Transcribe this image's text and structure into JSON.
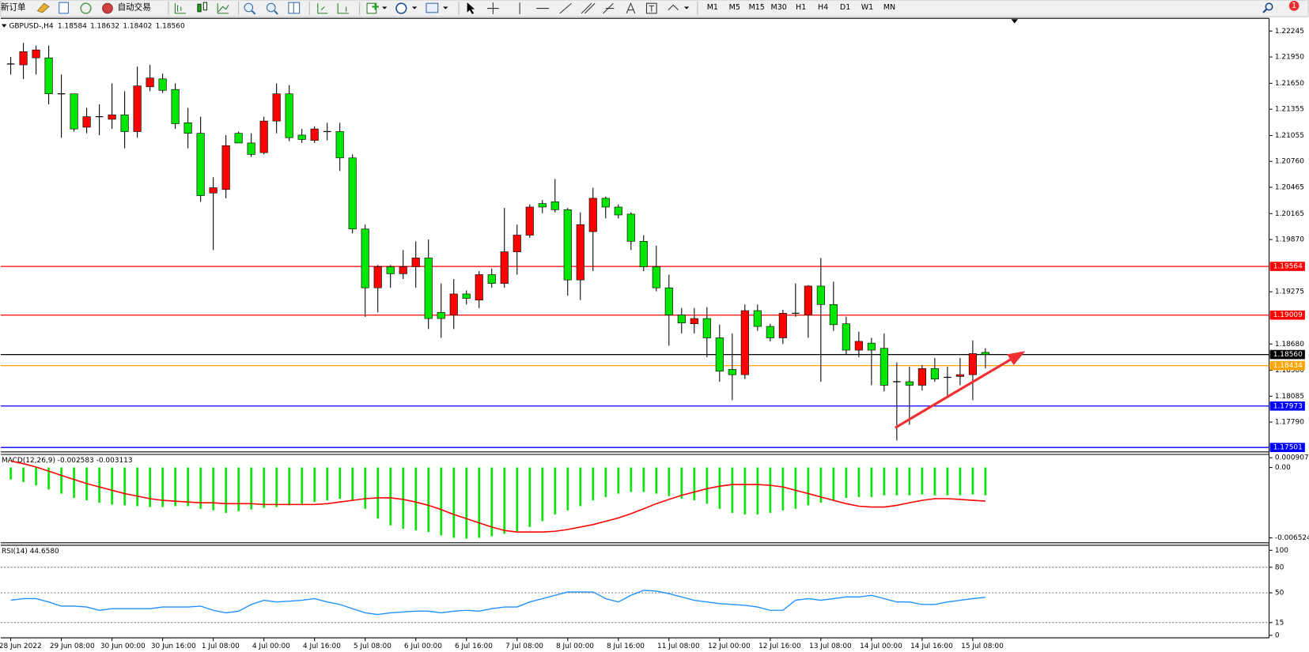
{
  "toolbar": {
    "new_order": "新订单",
    "auto_trading": "自动交易",
    "timeframes": [
      "M1",
      "M5",
      "M15",
      "M30",
      "H1",
      "H4",
      "D1",
      "W1",
      "MN"
    ],
    "notification": "1"
  },
  "chart_data": [
    {
      "type": "candlestick",
      "title": "GBPUSD-,H4",
      "ohlc_text": [
        "1.18584",
        "1.18632",
        "1.18402",
        "1.18560"
      ],
      "up_color": "#ff0000",
      "down_color": "#00e600",
      "ylim": [
        1.1746,
        1.2239
      ],
      "yticks": [
        1.22245,
        {
          "value": 1.2195,
          "label": "1.21950"
        },
        {
          "value": 1.2165,
          "label": "1.21650"
        },
        1.21355,
        1.21055,
        {
          "value": 1.2076,
          "label": "1.20760"
        },
        1.20465,
        1.20165,
        {
          "value": 1.1987,
          "label": "1.19870"
        },
        1.19275,
        {
          "value": 1.1868,
          "label": "1.18680"
        },
        {
          "value": 1.1838,
          "label": "1.18380"
        },
        1.18085,
        {
          "value": 1.1779,
          "label": "1.17790"
        }
      ],
      "levels": [
        {
          "value": 1.19564,
          "label": "1.19564",
          "color": "#ff0000"
        },
        {
          "value": 1.19009,
          "label": "1.19009",
          "color": "#ff0000"
        },
        {
          "value": 1.1856,
          "label": "1.18560",
          "color": "#000000"
        },
        {
          "value": 1.18434,
          "label": "1.18434",
          "color": "#ffa500"
        },
        {
          "value": 1.17973,
          "label": "1.17973",
          "color": "#0000ff"
        },
        {
          "value": 1.17501,
          "label": "1.17501",
          "color": "#0000ff"
        }
      ],
      "x_tick_labels": [
        "28 Jun 2022",
        "29 Jun 08:00",
        "30 Jun 00:00",
        "30 Jun 16:00",
        "1 Jul 08:00",
        "4 Jul 00:00",
        "4 Jul 16:00",
        "5 Jul 08:00",
        "6 Jul 00:00",
        "6 Jul 16:00",
        "7 Jul 08:00",
        "8 Jul 00:00",
        "8 Jul 16:00",
        "11 Jul 08:00",
        "12 Jul 00:00",
        "12 Jul 16:00",
        "13 Jul 08:00",
        "14 Jul 00:00",
        "14 Jul 16:00",
        "15 Jul 08:00"
      ],
      "ohlc": [
        [
          1.2187,
          1.2195,
          1.2175,
          1.2187
        ],
        [
          1.2186,
          1.2211,
          1.217,
          1.2201
        ],
        [
          1.2194,
          1.2208,
          1.2175,
          1.2203
        ],
        [
          1.2194,
          1.2208,
          1.2141,
          1.2153
        ],
        [
          1.2153,
          1.2175,
          1.2103,
          1.2153
        ],
        [
          1.2153,
          1.2153,
          1.211,
          1.2113
        ],
        [
          1.2115,
          1.2137,
          1.2108,
          1.2127
        ],
        [
          1.2127,
          1.2141,
          1.2106,
          1.2127
        ],
        [
          1.2124,
          1.2165,
          1.2113,
          1.2129
        ],
        [
          1.2129,
          1.2156,
          1.2091,
          1.211
        ],
        [
          1.211,
          1.2184,
          1.2103,
          1.2162
        ],
        [
          1.2161,
          1.2186,
          1.2156,
          1.2171
        ],
        [
          1.217,
          1.2176,
          1.2154,
          1.2157
        ],
        [
          1.2158,
          1.2165,
          1.2113,
          1.2119
        ],
        [
          1.212,
          1.2137,
          1.2091,
          1.2108
        ],
        [
          1.2108,
          1.2127,
          1.203,
          1.2037
        ],
        [
          1.204,
          1.2058,
          1.1975,
          1.2046
        ],
        [
          1.2044,
          1.2106,
          1.2034,
          1.2094
        ],
        [
          1.2108,
          1.211,
          1.2097,
          1.2097
        ],
        [
          1.2097,
          1.2108,
          1.2081,
          1.2084
        ],
        [
          1.2086,
          1.2127,
          1.2084,
          1.2122
        ],
        [
          1.2122,
          1.2165,
          1.2108,
          1.2153
        ],
        [
          1.2153,
          1.2163,
          1.2099,
          1.2103
        ],
        [
          1.2106,
          1.2113,
          1.2097,
          1.2101
        ],
        [
          1.21,
          1.2116,
          1.2097,
          1.2113
        ],
        [
          1.211,
          1.212,
          1.21,
          1.211
        ],
        [
          1.211,
          1.212,
          1.2065,
          1.208
        ],
        [
          1.208,
          1.2084,
          1.1994,
          1.1999
        ],
        [
          1.1999,
          1.2004,
          1.1899,
          1.1932
        ],
        [
          1.1932,
          1.1958,
          1.1904,
          1.1956
        ],
        [
          1.1956,
          1.1958,
          1.1932,
          1.1948
        ],
        [
          1.1948,
          1.1975,
          1.1942,
          1.1956
        ],
        [
          1.1956,
          1.1985,
          1.1932,
          1.1966
        ],
        [
          1.1966,
          1.1987,
          1.1885,
          1.1897
        ],
        [
          1.1904,
          1.1937,
          1.1875,
          1.1897
        ],
        [
          1.1901,
          1.1942,
          1.1885,
          1.1925
        ],
        [
          1.1925,
          1.1929,
          1.1913,
          1.192
        ],
        [
          1.1918,
          1.1951,
          1.1909,
          1.1947
        ],
        [
          1.1947,
          1.1954,
          1.1932,
          1.1937
        ],
        [
          1.1937,
          1.2023,
          1.1932,
          1.1973
        ],
        [
          1.1973,
          1.2004,
          1.1947,
          1.1992
        ],
        [
          1.1992,
          1.2027,
          1.1989,
          1.2024
        ],
        [
          1.2028,
          1.2032,
          1.2017,
          1.2024
        ],
        [
          1.203,
          1.2056,
          1.2018,
          1.2021
        ],
        [
          1.2021,
          1.2023,
          1.1923,
          1.1941
        ],
        [
          1.1941,
          1.2018,
          1.1918,
          1.2004
        ],
        [
          1.1996,
          1.2046,
          1.1951,
          1.2034
        ],
        [
          1.2034,
          1.2036,
          1.2011,
          1.2024
        ],
        [
          1.2024,
          1.2027,
          1.2011,
          1.2015
        ],
        [
          1.2016,
          1.2018,
          1.1975,
          1.1985
        ],
        [
          1.1985,
          1.1992,
          1.1951,
          1.1956
        ],
        [
          1.1956,
          1.198,
          1.1928,
          1.1932
        ],
        [
          1.1932,
          1.1947,
          1.1866,
          1.1901
        ],
        [
          1.1901,
          1.1909,
          1.188,
          1.1892
        ],
        [
          1.1891,
          1.1909,
          1.188,
          1.1897
        ],
        [
          1.1897,
          1.191,
          1.1853,
          1.1875
        ],
        [
          1.1875,
          1.189,
          1.1825,
          1.1837
        ],
        [
          1.1839,
          1.188,
          1.1804,
          1.1833
        ],
        [
          1.1833,
          1.1913,
          1.1828,
          1.1906
        ],
        [
          1.1906,
          1.1913,
          1.1883,
          1.1888
        ],
        [
          1.1888,
          1.1891,
          1.1871,
          1.1875
        ],
        [
          1.1875,
          1.1907,
          1.1868,
          1.1903
        ],
        [
          1.1903,
          1.1937,
          1.1899,
          1.1903
        ],
        [
          1.1901,
          1.1935,
          1.1875,
          1.1934
        ],
        [
          1.1934,
          1.1966,
          1.1825,
          1.1913
        ],
        [
          1.1913,
          1.1939,
          1.1883,
          1.189
        ],
        [
          1.1891,
          1.1899,
          1.1856,
          1.1861
        ],
        [
          1.1861,
          1.1882,
          1.1853,
          1.1871
        ],
        [
          1.1869,
          1.1875,
          1.1821,
          1.1861
        ],
        [
          1.1863,
          1.188,
          1.1814,
          1.1821
        ],
        [
          1.1825,
          1.1847,
          1.1758,
          1.1825
        ],
        [
          1.1825,
          1.1842,
          1.1776,
          1.1821
        ],
        [
          1.1821,
          1.1844,
          1.1815,
          1.184
        ],
        [
          1.184,
          1.1852,
          1.1825,
          1.1828
        ],
        [
          1.183,
          1.1842,
          1.1809,
          1.183
        ],
        [
          1.1831,
          1.1852,
          1.1821,
          1.1833
        ],
        [
          1.1833,
          1.1872,
          1.1804,
          1.1857
        ],
        [
          1.18584,
          1.18632,
          1.18402,
          1.1856
        ]
      ]
    },
    {
      "type": "macd",
      "title": "MACD(12,26,9) -0.002583 -0.003113",
      "ylim": [
        -0.0069,
        0.00114
      ],
      "yticks": [
        0.000907,
        {
          "value": 0,
          "label": "0.00"
        },
        -0.006524
      ],
      "histogram": {
        "color": "#00e600",
        "values": [
          -0.00111,
          -0.00134,
          -0.00165,
          -0.00204,
          -0.00242,
          -0.00281,
          -0.00304,
          -0.00327,
          -0.00343,
          -0.00351,
          -0.00358,
          -0.00366,
          -0.00366,
          -0.00358,
          -0.00358,
          -0.00382,
          -0.00397,
          -0.0042,
          -0.00405,
          -0.00389,
          -0.00374,
          -0.00366,
          -0.00351,
          -0.00335,
          -0.0032,
          -0.00304,
          -0.00289,
          -0.00304,
          -0.00382,
          -0.00474,
          -0.00536,
          -0.00567,
          -0.00583,
          -0.00598,
          -0.00629,
          -0.00652,
          -0.0066,
          -0.00652,
          -0.00637,
          -0.00614,
          -0.00591,
          -0.00552,
          -0.00498,
          -0.00436,
          -0.00397,
          -0.00358,
          -0.00304,
          -0.00273,
          -0.00242,
          -0.00227,
          -0.00227,
          -0.00242,
          -0.00265,
          -0.00289,
          -0.00304,
          -0.00335,
          -0.00382,
          -0.0042,
          -0.00436,
          -0.00436,
          -0.0042,
          -0.00397,
          -0.00382,
          -0.00351,
          -0.00327,
          -0.00304,
          -0.00281,
          -0.00273,
          -0.00273,
          -0.00258,
          -0.00258,
          -0.00258,
          -0.0025,
          -0.00258,
          -0.00258,
          -0.00258,
          -0.0025,
          -0.002583
        ]
      },
      "signal": {
        "color": "#ff0000",
        "values": [
          0.0006,
          0.00036,
          5e-05,
          -0.00033,
          -0.00072,
          -0.00111,
          -0.00149,
          -0.0018,
          -0.00211,
          -0.00242,
          -0.00265,
          -0.00289,
          -0.00304,
          -0.00312,
          -0.0032,
          -0.00327,
          -0.00327,
          -0.00335,
          -0.00335,
          -0.00335,
          -0.00343,
          -0.00343,
          -0.00343,
          -0.00343,
          -0.00343,
          -0.00335,
          -0.0032,
          -0.00304,
          -0.00289,
          -0.00281,
          -0.00281,
          -0.00296,
          -0.0032,
          -0.00351,
          -0.00389,
          -0.00436,
          -0.00474,
          -0.00513,
          -0.00552,
          -0.00583,
          -0.00598,
          -0.00598,
          -0.00598,
          -0.00591,
          -0.00575,
          -0.00552,
          -0.00529,
          -0.00498,
          -0.00467,
          -0.00428,
          -0.00382,
          -0.00335,
          -0.00296,
          -0.00258,
          -0.00227,
          -0.00196,
          -0.00173,
          -0.00157,
          -0.00157,
          -0.00157,
          -0.00165,
          -0.0018,
          -0.00211,
          -0.00242,
          -0.00273,
          -0.00304,
          -0.00335,
          -0.00358,
          -0.00366,
          -0.00366,
          -0.00351,
          -0.00327,
          -0.00304,
          -0.00289,
          -0.00289,
          -0.00296,
          -0.00304,
          -0.003113
        ]
      }
    },
    {
      "type": "rsi",
      "title": "RSI(14) 44.6580",
      "ylim": [
        0,
        100
      ],
      "yticks": [
        100,
        80,
        50,
        15,
        0
      ],
      "levels": [
        80,
        50,
        15
      ],
      "color": "#1e90ff",
      "values": [
        41.2,
        43.1,
        43.1,
        39.2,
        34.3,
        34.3,
        33.3,
        29.4,
        31.4,
        31.4,
        31.4,
        31.4,
        33.3,
        33.3,
        33.3,
        34.3,
        29.4,
        26.5,
        28.4,
        36.3,
        41.2,
        39.2,
        40.2,
        41.2,
        43.1,
        39.2,
        36.3,
        31.4,
        26.5,
        24.5,
        26.5,
        27.5,
        28.4,
        28.4,
        26.5,
        28.4,
        29.4,
        28.4,
        31.4,
        33.3,
        33.3,
        39.2,
        43.1,
        47.1,
        51.0,
        51.0,
        51.0,
        43.1,
        39.2,
        47.1,
        52.9,
        52.0,
        49.0,
        45.1,
        41.2,
        39.2,
        37.3,
        36.3,
        35.3,
        33.3,
        29.4,
        29.4,
        41.2,
        43.1,
        41.2,
        43.1,
        45.1,
        45.1,
        47.1,
        43.1,
        39.2,
        39.2,
        36.3,
        36.3,
        39.2,
        41.2,
        43.1,
        44.658
      ]
    }
  ]
}
